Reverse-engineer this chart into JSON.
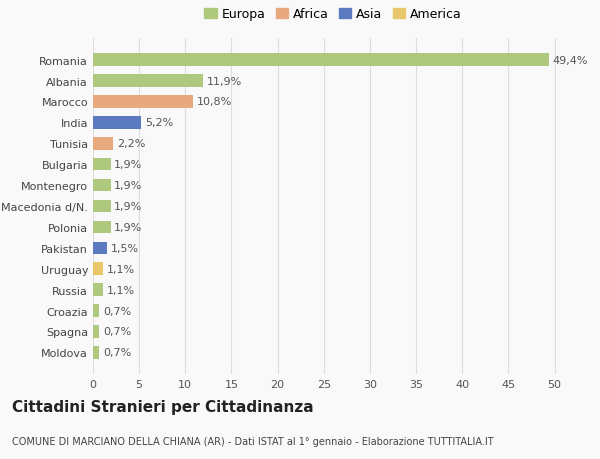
{
  "categories": [
    "Moldova",
    "Spagna",
    "Croazia",
    "Russia",
    "Uruguay",
    "Pakistan",
    "Polonia",
    "Macedonia d/N.",
    "Montenegro",
    "Bulgaria",
    "Tunisia",
    "India",
    "Marocco",
    "Albania",
    "Romania"
  ],
  "values": [
    0.7,
    0.7,
    0.7,
    1.1,
    1.1,
    1.5,
    1.9,
    1.9,
    1.9,
    1.9,
    2.2,
    5.2,
    10.8,
    11.9,
    49.4
  ],
  "labels": [
    "0,7%",
    "0,7%",
    "0,7%",
    "1,1%",
    "1,1%",
    "1,5%",
    "1,9%",
    "1,9%",
    "1,9%",
    "1,9%",
    "2,2%",
    "5,2%",
    "10,8%",
    "11,9%",
    "49,4%"
  ],
  "colors": [
    "#aec97e",
    "#aec97e",
    "#aec97e",
    "#aec97e",
    "#e8c76a",
    "#5b7abf",
    "#aec97e",
    "#aec97e",
    "#aec97e",
    "#aec97e",
    "#e8a97e",
    "#5b7abf",
    "#e8a97e",
    "#aec97e",
    "#aec97e"
  ],
  "legend": [
    {
      "label": "Europa",
      "color": "#aec97e"
    },
    {
      "label": "Africa",
      "color": "#e8a97e"
    },
    {
      "label": "Asia",
      "color": "#5b7abf"
    },
    {
      "label": "America",
      "color": "#e8c76a"
    }
  ],
  "xlim": [
    0,
    52
  ],
  "xticks": [
    0,
    5,
    10,
    15,
    20,
    25,
    30,
    35,
    40,
    45,
    50
  ],
  "title": "Cittadini Stranieri per Cittadinanza",
  "subtitle": "COMUNE DI MARCIANO DELLA CHIANA (AR) - Dati ISTAT al 1° gennaio - Elaborazione TUTTITALIA.IT",
  "bg_color": "#f9f9f9",
  "grid_color": "#dddddd",
  "bar_height": 0.6,
  "label_fontsize": 8,
  "tick_fontsize": 8,
  "title_fontsize": 11,
  "subtitle_fontsize": 7,
  "legend_fontsize": 9
}
